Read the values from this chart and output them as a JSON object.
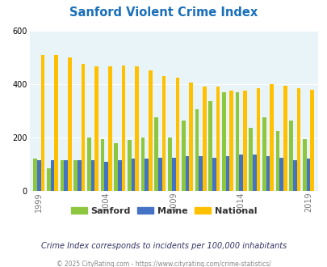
{
  "title": "Sanford Violent Crime Index",
  "years": [
    1999,
    2000,
    2001,
    2002,
    2003,
    2004,
    2005,
    2006,
    2007,
    2008,
    2009,
    2010,
    2011,
    2012,
    2013,
    2014,
    2015,
    2016,
    2017,
    2018,
    2019
  ],
  "sanford": [
    120,
    85,
    115,
    115,
    200,
    195,
    180,
    190,
    200,
    275,
    200,
    265,
    305,
    335,
    370,
    370,
    235,
    275,
    225,
    265,
    195
  ],
  "maine": [
    115,
    115,
    115,
    115,
    115,
    110,
    115,
    120,
    120,
    125,
    125,
    130,
    130,
    125,
    130,
    135,
    135,
    130,
    125,
    115,
    120
  ],
  "national": [
    510,
    510,
    500,
    475,
    465,
    465,
    470,
    465,
    450,
    430,
    425,
    405,
    390,
    390,
    375,
    375,
    385,
    400,
    395,
    385,
    380
  ],
  "sanford_color": "#8dc63f",
  "maine_color": "#4472c4",
  "national_color": "#ffc000",
  "bg_color": "#e8f4f8",
  "ylim": [
    0,
    600
  ],
  "yticks": [
    0,
    200,
    400,
    600
  ],
  "grid_color": "#ffffff",
  "title_color": "#1a6fba",
  "xlabel_years": [
    1999,
    2004,
    2009,
    2014,
    2019
  ],
  "subtitle": "Crime Index corresponds to incidents per 100,000 inhabitants",
  "footer": "© 2025 CityRating.com - https://www.cityrating.com/crime-statistics/",
  "bar_width": 0.28,
  "legend_labels": [
    "Sanford",
    "Maine",
    "National"
  ],
  "legend_colors": [
    "#8dc63f",
    "#4472c4",
    "#ffc000"
  ]
}
